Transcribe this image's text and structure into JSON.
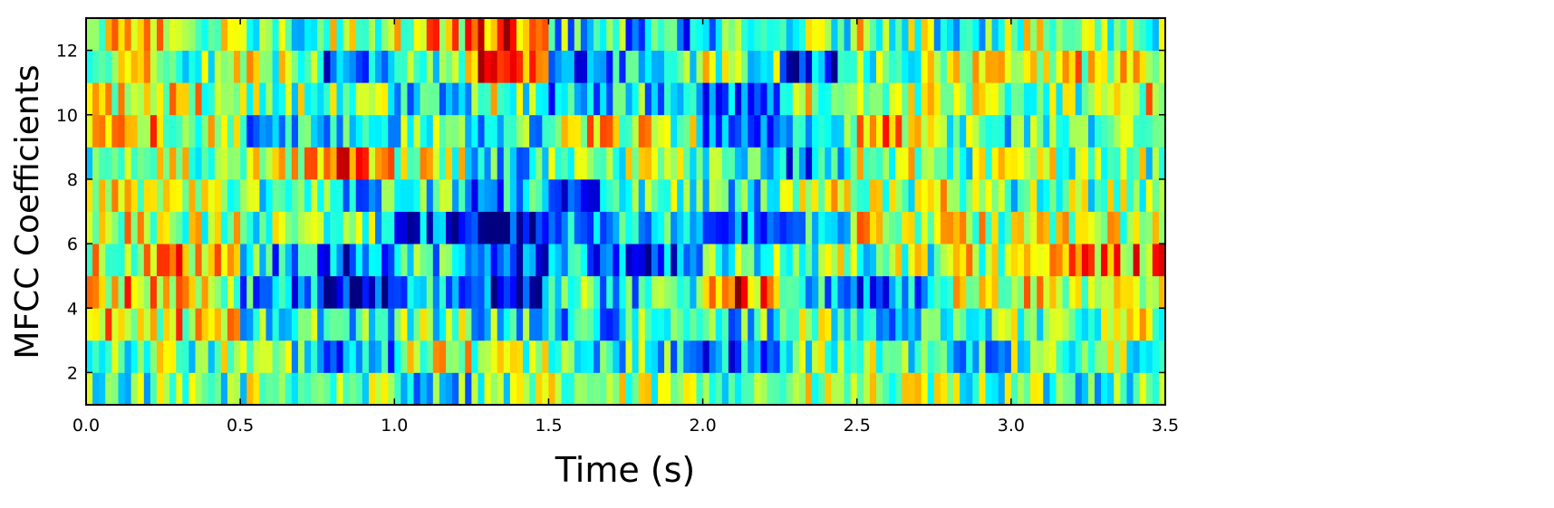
{
  "chart_data": {
    "type": "heatmap",
    "title": "",
    "xlabel": "Time (s)",
    "ylabel": "MFCC Coefficients",
    "xlim": [
      0.0,
      3.5
    ],
    "ylim": [
      1,
      13
    ],
    "xticks": [
      "0.0",
      "0.5",
      "1.0",
      "1.5",
      "2.0",
      "2.5",
      "3.0",
      "3.5"
    ],
    "yticks": [
      "2",
      "4",
      "6",
      "8",
      "10",
      "12"
    ],
    "colormap": "jet",
    "value_range": [
      0.0,
      1.0
    ],
    "coefficients": [
      1,
      2,
      3,
      4,
      5,
      6,
      7,
      8,
      9,
      10,
      11,
      12
    ],
    "time_segments_s": [
      0.0,
      0.25,
      0.5,
      0.75,
      1.0,
      1.25,
      1.5,
      1.75,
      2.0,
      2.25,
      2.5,
      2.75,
      3.0,
      3.25,
      3.5
    ],
    "rows": [
      {
        "coefficient": 1,
        "values": [
          0.45,
          0.42,
          0.5,
          0.5,
          0.38,
          0.48,
          0.5,
          0.5,
          0.52,
          0.5,
          0.52,
          0.48,
          0.45,
          0.45
        ]
      },
      {
        "coefficient": 2,
        "values": [
          0.5,
          0.5,
          0.5,
          0.15,
          0.55,
          0.58,
          0.4,
          0.42,
          0.2,
          0.45,
          0.5,
          0.35,
          0.48,
          0.5
        ]
      },
      {
        "coefficient": 3,
        "values": [
          0.62,
          0.65,
          0.4,
          0.4,
          0.5,
          0.4,
          0.35,
          0.4,
          0.38,
          0.5,
          0.3,
          0.45,
          0.5,
          0.55
        ]
      },
      {
        "coefficient": 4,
        "values": [
          0.65,
          0.68,
          0.3,
          0.08,
          0.35,
          0.15,
          0.4,
          0.35,
          0.85,
          0.35,
          0.2,
          0.55,
          0.6,
          0.62
        ]
      },
      {
        "coefficient": 5,
        "values": [
          0.6,
          0.7,
          0.35,
          0.2,
          0.4,
          0.2,
          0.3,
          0.18,
          0.38,
          0.5,
          0.48,
          0.55,
          0.7,
          0.7
        ]
      },
      {
        "coefficient": 6,
        "values": [
          0.62,
          0.55,
          0.5,
          0.5,
          0.2,
          0.1,
          0.35,
          0.4,
          0.18,
          0.35,
          0.6,
          0.55,
          0.6,
          0.55
        ]
      },
      {
        "coefficient": 7,
        "values": [
          0.55,
          0.6,
          0.45,
          0.35,
          0.45,
          0.3,
          0.25,
          0.45,
          0.35,
          0.55,
          0.5,
          0.55,
          0.45,
          0.5
        ]
      },
      {
        "coefficient": 8,
        "values": [
          0.5,
          0.55,
          0.55,
          0.8,
          0.6,
          0.3,
          0.55,
          0.5,
          0.45,
          0.25,
          0.55,
          0.5,
          0.5,
          0.5
        ]
      },
      {
        "coefficient": 9,
        "values": [
          0.65,
          0.6,
          0.35,
          0.3,
          0.45,
          0.35,
          0.62,
          0.6,
          0.3,
          0.25,
          0.7,
          0.45,
          0.4,
          0.4
        ]
      },
      {
        "coefficient": 10,
        "values": [
          0.55,
          0.6,
          0.5,
          0.5,
          0.35,
          0.55,
          0.3,
          0.4,
          0.15,
          0.55,
          0.5,
          0.55,
          0.5,
          0.6
        ]
      },
      {
        "coefficient": 11,
        "values": [
          0.6,
          0.5,
          0.55,
          0.2,
          0.45,
          0.8,
          0.25,
          0.35,
          0.55,
          0.15,
          0.5,
          0.55,
          0.6,
          0.65
        ]
      },
      {
        "coefficient": 12,
        "values": [
          0.6,
          0.55,
          0.45,
          0.55,
          0.62,
          0.85,
          0.4,
          0.3,
          0.35,
          0.45,
          0.55,
          0.45,
          0.5,
          0.5
        ]
      }
    ]
  }
}
